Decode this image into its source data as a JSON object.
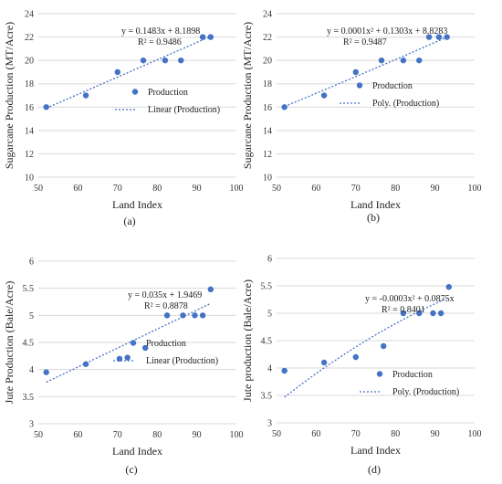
{
  "chart_data": [
    {
      "panel": "(a)",
      "type": "scatter",
      "xlabel": "Land Index",
      "ylabel": "Sugarcane Production (MT/Acre)",
      "xlim": [
        50,
        100
      ],
      "xticks": [
        50,
        60,
        70,
        80,
        90,
        100
      ],
      "ylim": [
        10,
        24
      ],
      "yticks": [
        10,
        12,
        14,
        16,
        18,
        20,
        22,
        24
      ],
      "grid": "horizontal",
      "series": [
        {
          "name": "Production",
          "x": [
            52,
            62,
            70,
            76.5,
            82,
            86,
            91.5,
            93.5
          ],
          "y": [
            16,
            17,
            19,
            20,
            20,
            20,
            22,
            22
          ]
        }
      ],
      "trendline": {
        "name": "Linear (Production)",
        "kind": "linear",
        "coefficients": [
          0.1483,
          8.1898
        ]
      },
      "equation": "y = 0.1483x + 8.1898",
      "r2": "R² = 0.9486",
      "legend": "right"
    },
    {
      "panel": "(b)",
      "type": "scatter",
      "xlabel": "Land Index",
      "ylabel": "Sugarcane Production (MT/Acre)",
      "xlim": [
        50,
        100
      ],
      "xticks": [
        50,
        60,
        70,
        80,
        90,
        100
      ],
      "ylim": [
        10,
        24
      ],
      "yticks": [
        10,
        12,
        14,
        16,
        18,
        20,
        22,
        24
      ],
      "grid": "horizontal",
      "series": [
        {
          "name": "Production",
          "x": [
            52,
            62,
            70,
            76.5,
            82,
            86,
            88.5,
            91,
            93
          ],
          "y": [
            16,
            17,
            19,
            20,
            20,
            20,
            22,
            22,
            22
          ]
        }
      ],
      "trendline": {
        "name": "Poly. (Production)",
        "kind": "poly2",
        "coefficients": [
          0.0001,
          0.1303,
          8.8283
        ]
      },
      "equation": "y = 0.0001x² + 0.1303x + 8.8283",
      "r2": "R² = 0.9487",
      "legend": "right"
    },
    {
      "panel": "(c)",
      "type": "scatter",
      "xlabel": "Land Index",
      "ylabel": "Jute Production (Bale/Acre)",
      "xlim": [
        50,
        100
      ],
      "xticks": [
        50,
        60,
        70,
        80,
        90,
        100
      ],
      "ylim": [
        3,
        6
      ],
      "yticks": [
        3,
        3.5,
        4,
        4.5,
        5,
        5.5,
        6
      ],
      "grid": "horizontal",
      "series": [
        {
          "name": "Production",
          "x": [
            52,
            62,
            70.5,
            72.5,
            77,
            82.5,
            86.5,
            89.5,
            91.5,
            93.5
          ],
          "y": [
            3.95,
            4.1,
            4.2,
            4.22,
            4.4,
            5.0,
            5.0,
            5.0,
            5.0,
            5.48
          ]
        }
      ],
      "trendline": {
        "name": "Linear (Production)",
        "kind": "linear",
        "coefficients": [
          0.035,
          1.9469
        ]
      },
      "equation": "y = 0.035x + 1.9469",
      "r2": "R² = 0.8878",
      "legend": "right"
    },
    {
      "panel": "(d)",
      "type": "scatter",
      "xlabel": "Land Index",
      "ylabel": "Jute production (Bale/Acre)",
      "xlim": [
        50,
        100
      ],
      "xticks": [
        50,
        60,
        70,
        80,
        90,
        100
      ],
      "ylim": [
        3,
        6
      ],
      "yticks": [
        3,
        3.5,
        4,
        4.5,
        5,
        5.5,
        6
      ],
      "grid": "horizontal",
      "series": [
        {
          "name": "Production",
          "x": [
            52,
            62,
            70,
            77,
            82,
            86,
            89.5,
            91.5,
            93.5
          ],
          "y": [
            3.95,
            4.1,
            4.2,
            4.4,
            5.0,
            5.0,
            5.0,
            5.0,
            5.48
          ]
        }
      ],
      "trendline": {
        "name": "Poly. (Production)",
        "kind": "poly2",
        "coefficients": [
          -0.0003,
          0.0875,
          0.0
        ]
      },
      "equation": "y = -0.0003x² + 0.0875x",
      "r2": "R² = 0.8401",
      "legend": "right"
    }
  ],
  "colors": {
    "marker": "#4472C4",
    "trend": "#4472C4",
    "axis": "#bfbfbf"
  }
}
